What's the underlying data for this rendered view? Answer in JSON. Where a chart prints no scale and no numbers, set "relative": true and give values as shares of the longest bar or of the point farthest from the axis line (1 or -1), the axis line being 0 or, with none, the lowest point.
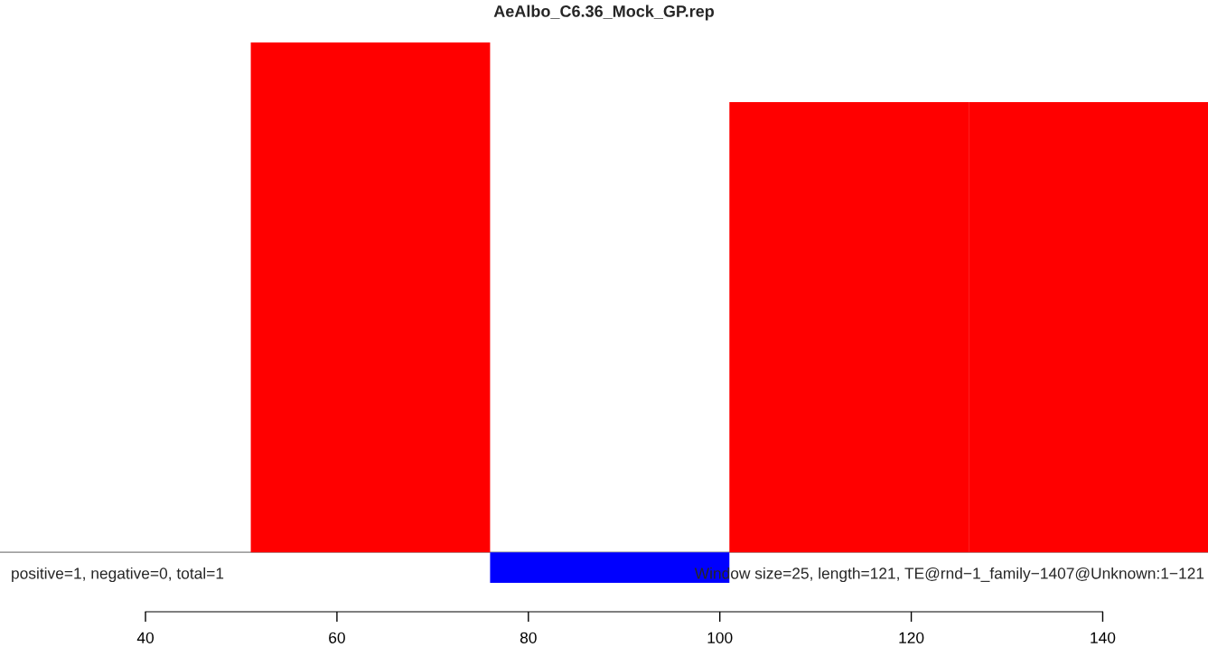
{
  "chart_data": {
    "type": "bar",
    "title": "AeAlbo_C6.36_Mock_GP.rep",
    "relative": true,
    "x": [
      38.5,
      63.5,
      88.5,
      113.5,
      138.5
    ],
    "values": [
      0,
      1,
      -0.06,
      0.883,
      0.883
    ],
    "colors": [
      "#ff0000",
      "#ff0000",
      "#0000ff",
      "#ff0000",
      "#ff0000"
    ],
    "xlim": [
      24.8,
      151
    ],
    "xticks": [
      40,
      60,
      80,
      100,
      120,
      140
    ],
    "annotations": [
      "positive=1, negative=0, total=1",
      "Window size=25, length=121, TE@rnd−1_family−1407@Unknown:1−121"
    ],
    "grid": false,
    "legend": false
  }
}
